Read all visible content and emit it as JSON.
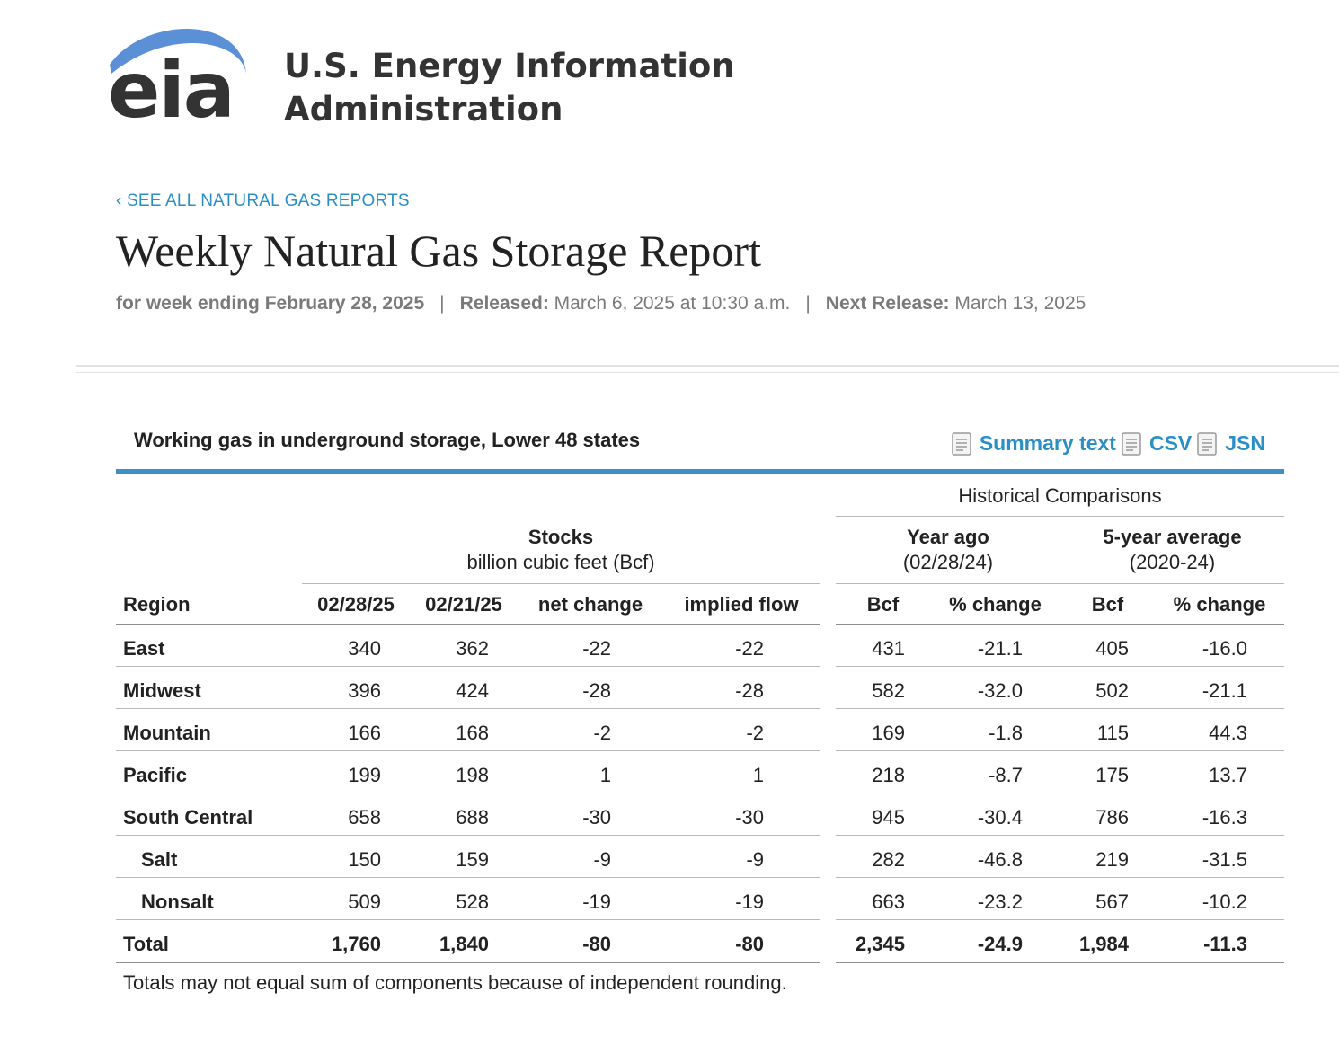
{
  "brand": {
    "logo_letters": "eia",
    "name_line1": "U.S. Energy Information",
    "name_line2": "Administration",
    "arc_color": "#5b8fd6"
  },
  "header": {
    "back_link": "‹ SEE ALL NATURAL GAS REPORTS",
    "title": "Weekly Natural Gas Storage Report",
    "week_label": "for week ending February 28, 2025",
    "separator": "|",
    "released_label": "Released:",
    "released_value": "March 6, 2025 at 10:30 a.m.",
    "next_label": "Next Release:",
    "next_value": "March 13, 2025"
  },
  "table_section": {
    "title": "Working gas in underground storage, Lower 48 states",
    "downloads": [
      {
        "label": "Summary text",
        "icon": "document-icon"
      },
      {
        "label": "CSV",
        "icon": "document-icon"
      },
      {
        "label": "JSN",
        "icon": "document-icon"
      }
    ],
    "accent_color": "#3f8fc6",
    "link_color": "#2b8fc5"
  },
  "table": {
    "historical_header": "Historical Comparisons",
    "stocks_header": "Stocks",
    "stocks_units": "billion cubic feet (Bcf)",
    "year_ago_header": "Year ago",
    "year_ago_date": "(02/28/24)",
    "five_year_header": "5-year average",
    "five_year_range": "(2020-24)",
    "columns": [
      "Region",
      "02/28/25",
      "02/21/25",
      "net change",
      "implied flow",
      "Bcf",
      "% change",
      "Bcf",
      "% change"
    ],
    "rows": [
      {
        "region": "East",
        "indent": false,
        "values": [
          "340",
          "362",
          "-22",
          "-22",
          "431",
          "-21.1",
          "405",
          "-16.0"
        ]
      },
      {
        "region": "Midwest",
        "indent": false,
        "values": [
          "396",
          "424",
          "-28",
          "-28",
          "582",
          "-32.0",
          "502",
          "-21.1"
        ]
      },
      {
        "region": "Mountain",
        "indent": false,
        "values": [
          "166",
          "168",
          "-2",
          "-2",
          "169",
          "-1.8",
          "115",
          "44.3"
        ]
      },
      {
        "region": "Pacific",
        "indent": false,
        "values": [
          "199",
          "198",
          "1",
          "1",
          "218",
          "-8.7",
          "175",
          "13.7"
        ]
      },
      {
        "region": "South Central",
        "indent": false,
        "values": [
          "658",
          "688",
          "-30",
          "-30",
          "945",
          "-30.4",
          "786",
          "-16.3"
        ]
      },
      {
        "region": "Salt",
        "indent": true,
        "values": [
          "150",
          "159",
          "-9",
          "-9",
          "282",
          "-46.8",
          "219",
          "-31.5"
        ]
      },
      {
        "region": "Nonsalt",
        "indent": true,
        "values": [
          "509",
          "528",
          "-19",
          "-19",
          "663",
          "-23.2",
          "567",
          "-10.2"
        ]
      }
    ],
    "total": {
      "region": "Total",
      "values": [
        "1,760",
        "1,840",
        "-80",
        "-80",
        "2,345",
        "-24.9",
        "1,984",
        "-11.3"
      ]
    }
  },
  "footnote": "Totals may not equal sum of components because of independent rounding."
}
